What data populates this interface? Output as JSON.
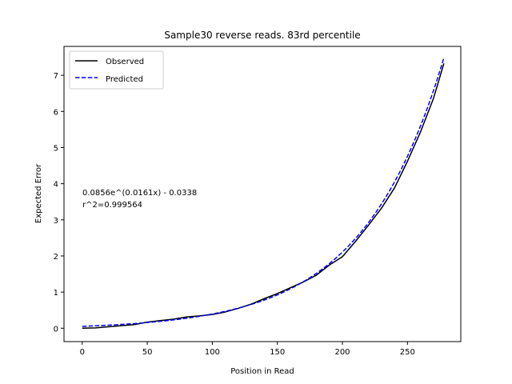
{
  "chart_data": {
    "type": "line",
    "title": "Sample30 reverse reads. 83rd percentile",
    "xlabel": "Position in Read",
    "ylabel": "Expected Error",
    "xlim": [
      -14,
      291
    ],
    "ylim": [
      -0.37,
      7.8
    ],
    "xticks": [
      0,
      50,
      100,
      150,
      200,
      250
    ],
    "yticks": [
      0,
      1,
      2,
      3,
      4,
      5,
      6,
      7
    ],
    "grid": false,
    "legend_position": "top-left",
    "annotation": [
      "0.0856e^(0.0161x) - 0.0338",
      "r^2=0.999564"
    ],
    "series": [
      {
        "name": "Observed",
        "color": "#000000",
        "style": "solid",
        "points": [
          [
            0,
            0.0
          ],
          [
            10,
            0.01
          ],
          [
            20,
            0.04
          ],
          [
            30,
            0.07
          ],
          [
            40,
            0.1
          ],
          [
            50,
            0.17
          ],
          [
            60,
            0.21
          ],
          [
            70,
            0.25
          ],
          [
            80,
            0.31
          ],
          [
            90,
            0.34
          ],
          [
            100,
            0.38
          ],
          [
            110,
            0.45
          ],
          [
            120,
            0.55
          ],
          [
            130,
            0.67
          ],
          [
            140,
            0.82
          ],
          [
            150,
            0.96
          ],
          [
            160,
            1.12
          ],
          [
            170,
            1.28
          ],
          [
            180,
            1.47
          ],
          [
            190,
            1.75
          ],
          [
            200,
            1.98
          ],
          [
            210,
            2.4
          ],
          [
            220,
            2.85
          ],
          [
            230,
            3.32
          ],
          [
            240,
            3.88
          ],
          [
            250,
            4.62
          ],
          [
            260,
            5.43
          ],
          [
            270,
            6.36
          ],
          [
            278,
            7.33
          ]
        ]
      },
      {
        "name": "Predicted",
        "color": "#0000ff",
        "style": "dashed",
        "fit": {
          "a": 0.0856,
          "b": 0.0161,
          "c": -0.0338,
          "x_start": 0,
          "x_end": 278
        }
      }
    ]
  }
}
